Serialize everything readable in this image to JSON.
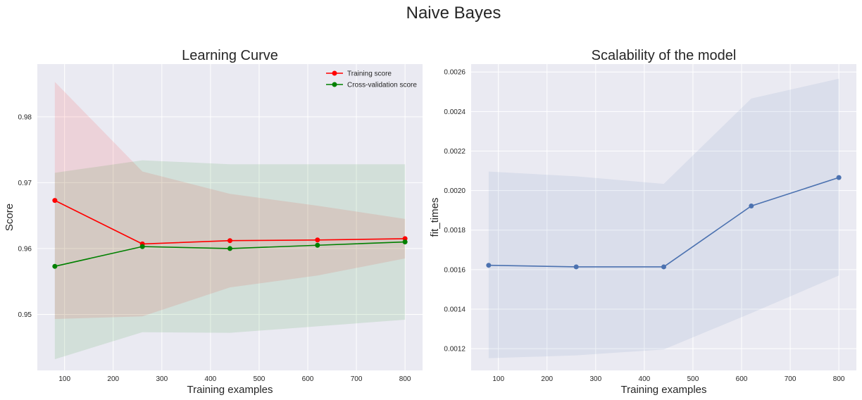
{
  "figure": {
    "title": "Naive Bayes",
    "background": "#ffffff",
    "axes_facecolor": "#eaeaf2",
    "grid_color": "#ffffff"
  },
  "chart_data": [
    {
      "type": "line",
      "title": "Learning Curve",
      "xlabel": "Training examples",
      "ylabel": "Score",
      "x": [
        80,
        260,
        440,
        620,
        800
      ],
      "xlim": [
        44,
        836
      ],
      "ylim": [
        0.9415,
        0.988
      ],
      "xticks": [
        100,
        200,
        300,
        400,
        500,
        600,
        700,
        800
      ],
      "xtick_labels": [
        "100",
        "200",
        "300",
        "400",
        "500",
        "600",
        "700",
        "800"
      ],
      "yticks": [
        0.95,
        0.96,
        0.97,
        0.98
      ],
      "ytick_labels": [
        "0.95",
        "0.96",
        "0.97",
        "0.98"
      ],
      "grid": true,
      "legend_position": "top-right",
      "series": [
        {
          "name": "Training score",
          "color": "#ff0000",
          "fill_color": "#ff0000",
          "values": [
            0.9673,
            0.9607,
            0.9612,
            0.9613,
            0.9615
          ],
          "band_upper": [
            0.9853,
            0.9717,
            0.9683,
            0.9665,
            0.9645
          ],
          "band_lower": [
            0.9493,
            0.9497,
            0.9541,
            0.9559,
            0.9585
          ]
        },
        {
          "name": "Cross-validation score",
          "color": "#008000",
          "fill_color": "#008000",
          "values": [
            0.9573,
            0.9603,
            0.96,
            0.9605,
            0.961
          ],
          "band_upper": [
            0.9715,
            0.9734,
            0.9728,
            0.9728,
            0.9728
          ],
          "band_lower": [
            0.9432,
            0.9473,
            0.9472,
            0.9482,
            0.9492
          ]
        }
      ]
    },
    {
      "type": "line",
      "title": "Scalability of the model",
      "xlabel": "Training examples",
      "ylabel": "fit_times",
      "x": [
        80,
        260,
        440,
        620,
        800
      ],
      "xlim": [
        44,
        836
      ],
      "ylim": [
        0.00109,
        0.00264
      ],
      "xticks": [
        100,
        200,
        300,
        400,
        500,
        600,
        700,
        800
      ],
      "xtick_labels": [
        "100",
        "200",
        "300",
        "400",
        "500",
        "600",
        "700",
        "800"
      ],
      "yticks": [
        0.0012,
        0.0014,
        0.0016,
        0.0018,
        0.002,
        0.0022,
        0.0024,
        0.0026
      ],
      "ytick_labels": [
        "0.0012",
        "0.0014",
        "0.0016",
        "0.0018",
        "0.0020",
        "0.0022",
        "0.0024",
        "0.0026"
      ],
      "grid": true,
      "series": [
        {
          "color": "#4c72b0",
          "fill_color": "#4c72b0",
          "values": [
            0.001622,
            0.001614,
            0.001614,
            0.001922,
            0.002066
          ],
          "band_upper": [
            0.002096,
            0.002072,
            0.002034,
            0.002466,
            0.002566
          ],
          "band_lower": [
            0.001152,
            0.001166,
            0.001196,
            0.00138,
            0.00157
          ]
        }
      ]
    }
  ]
}
